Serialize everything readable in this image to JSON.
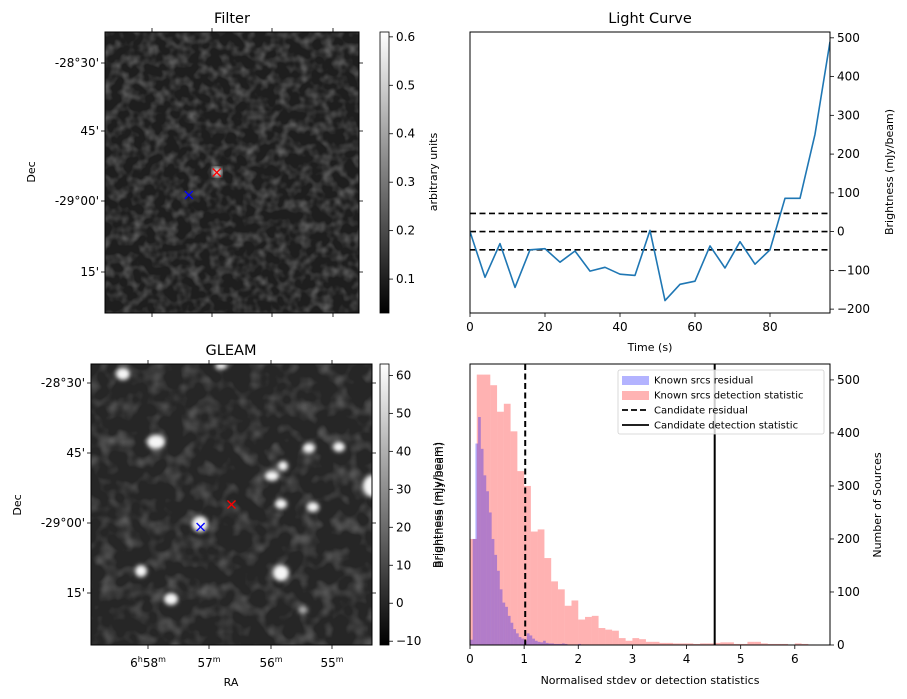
{
  "chart_data": [
    {
      "id": "filter",
      "type": "heatmap",
      "title": "Filter",
      "xlabel": "",
      "ylabel": "Dec",
      "y_ticks": [
        "-28°30'",
        "45'",
        "-29°00'",
        "15'"
      ],
      "x_ticks": [],
      "colormap": "gray",
      "colorbar": {
        "label": "arbitrary units",
        "ticks": [
          "0.1",
          "0.2",
          "0.3",
          "0.4",
          "0.5",
          "0.6"
        ],
        "range": [
          0.03,
          0.61
        ]
      },
      "markers": [
        {
          "name": "candidate",
          "symbol": "x",
          "color": "#ff0000",
          "pos": [
            0.44,
            0.5
          ]
        },
        {
          "name": "known-source",
          "symbol": "x",
          "color": "#0000ff",
          "pos": [
            0.33,
            0.58
          ]
        }
      ]
    },
    {
      "id": "light-curve",
      "type": "line",
      "title": "Light Curve",
      "xlabel": "Time (s)",
      "ylabel": "Brightness (mJy/beam)",
      "xlim": [
        0,
        96
      ],
      "ylim": [
        -210,
        515
      ],
      "x_ticks": [
        "0",
        "20",
        "40",
        "60",
        "80"
      ],
      "x_tick_values": [
        0,
        20,
        40,
        60,
        80
      ],
      "y_ticks": [
        "−200",
        "−100",
        "0",
        "100",
        "200",
        "300",
        "400",
        "500"
      ],
      "y_tick_values": [
        -200,
        -100,
        0,
        100,
        200,
        300,
        400,
        500
      ],
      "y_axis_side": "right",
      "series": [
        {
          "name": "light curve",
          "color": "#1f77b4",
          "x": [
            0,
            4,
            8,
            12,
            16,
            20,
            24,
            28,
            32,
            36,
            40,
            44,
            48,
            52,
            56,
            60,
            64,
            68,
            72,
            76,
            80,
            84,
            88,
            92,
            96
          ],
          "y": [
            0,
            -118,
            -31,
            -144,
            -47,
            -44,
            -79,
            -50,
            -102,
            -92,
            -110,
            -113,
            3,
            -178,
            -136,
            -128,
            -37,
            -94,
            -26,
            -84,
            -47,
            86,
            86,
            251,
            490
          ]
        }
      ],
      "hlines": [
        {
          "value": 47,
          "style": "dashed",
          "color": "#000000"
        },
        {
          "value": 0,
          "style": "dashed",
          "color": "#000000"
        },
        {
          "value": -47,
          "style": "dashed",
          "color": "#000000"
        }
      ]
    },
    {
      "id": "gleam",
      "type": "heatmap",
      "title": "GLEAM",
      "xlabel": "RA",
      "ylabel": "Dec",
      "y_ticks": [
        "-28°30'",
        "45'",
        "-29°00'",
        "15'"
      ],
      "x_ticks": [
        {
          "main": "6",
          "sup1": "h",
          "mid": "58",
          "sup2": "m"
        },
        {
          "main": "",
          "sup1": "",
          "mid": "57",
          "sup2": "m"
        },
        {
          "main": "",
          "sup1": "",
          "mid": "56",
          "sup2": "m"
        },
        {
          "main": "",
          "sup1": "",
          "mid": "55",
          "sup2": "m"
        }
      ],
      "colormap": "gray",
      "colorbar": {
        "label": "Brightness (mJy/beam)",
        "ticks": [
          "−10",
          "0",
          "10",
          "20",
          "30",
          "40",
          "50",
          "60"
        ],
        "range": [
          -11,
          63
        ]
      },
      "markers": [
        {
          "name": "candidate",
          "symbol": "x",
          "color": "#ff0000",
          "pos": [
            0.5,
            0.5
          ]
        },
        {
          "name": "known-source",
          "symbol": "x",
          "color": "#0000ff",
          "pos": [
            0.39,
            0.58
          ]
        }
      ]
    },
    {
      "id": "histogram",
      "type": "bar",
      "title": "",
      "xlabel": "Normalised stdev or detection statistics",
      "ylabel": "Brightness (mJy/beam)",
      "ylabel_right": "Number of Sources",
      "xlim": [
        0,
        6.65
      ],
      "ylim": [
        0,
        530
      ],
      "x_ticks": [
        "0",
        "1",
        "2",
        "3",
        "4",
        "5",
        "6"
      ],
      "x_tick_values": [
        0,
        1,
        2,
        3,
        4,
        5,
        6
      ],
      "y_ticks": [
        "0",
        "100",
        "200",
        "300",
        "400",
        "500"
      ],
      "y_tick_values": [
        0,
        100,
        200,
        300,
        400,
        500
      ],
      "y_axis_side": "right",
      "series": [
        {
          "name": "Known srcs residual",
          "color": "#0000ff",
          "alpha": 0.3,
          "bin_start": 0.0,
          "bin_width": 0.05,
          "values": [
            10,
            200,
            380,
            430,
            370,
            320,
            290,
            250,
            200,
            170,
            140,
            105,
            80,
            72,
            55,
            42,
            30,
            22,
            15,
            12,
            8,
            22,
            18,
            12,
            8,
            6,
            5,
            8,
            4,
            3,
            3,
            2,
            2,
            2,
            3,
            2,
            1,
            1,
            1,
            1,
            2,
            1,
            1,
            1
          ]
        },
        {
          "name": "Known srcs detection statistic",
          "color": "#ff0000",
          "alpha": 0.3,
          "bin_start": 0.0,
          "bin_width": 0.125,
          "values": [
            200,
            510,
            510,
            490,
            440,
            455,
            403,
            328,
            300,
            214,
            218,
            164,
            120,
            105,
            74,
            84,
            48,
            53,
            55,
            32,
            29,
            27,
            13,
            8,
            13,
            11,
            6,
            6,
            4,
            4,
            3,
            3,
            3,
            2,
            3,
            3,
            4,
            5,
            5,
            2,
            2,
            6,
            6,
            3,
            2,
            2,
            2,
            1,
            3,
            2,
            1
          ]
        }
      ],
      "vlines": [
        {
          "name": "Candidate residual",
          "value": 1.02,
          "style": "dashed",
          "color": "#000000"
        },
        {
          "name": "Candidate detection statistic",
          "value": 4.52,
          "style": "solid",
          "color": "#000000"
        }
      ],
      "legend": {
        "placement": "top-right",
        "entries": [
          {
            "label": "Known srcs residual",
            "kind": "patch",
            "color": "#b3b3ff"
          },
          {
            "label": "Known srcs detection statistic",
            "kind": "patch",
            "color": "#ffb3b3"
          },
          {
            "label": "Candidate residual",
            "kind": "dashed-line",
            "color": "#000000"
          },
          {
            "label": "Candidate detection statistic",
            "kind": "solid-line",
            "color": "#000000"
          }
        ]
      }
    }
  ]
}
